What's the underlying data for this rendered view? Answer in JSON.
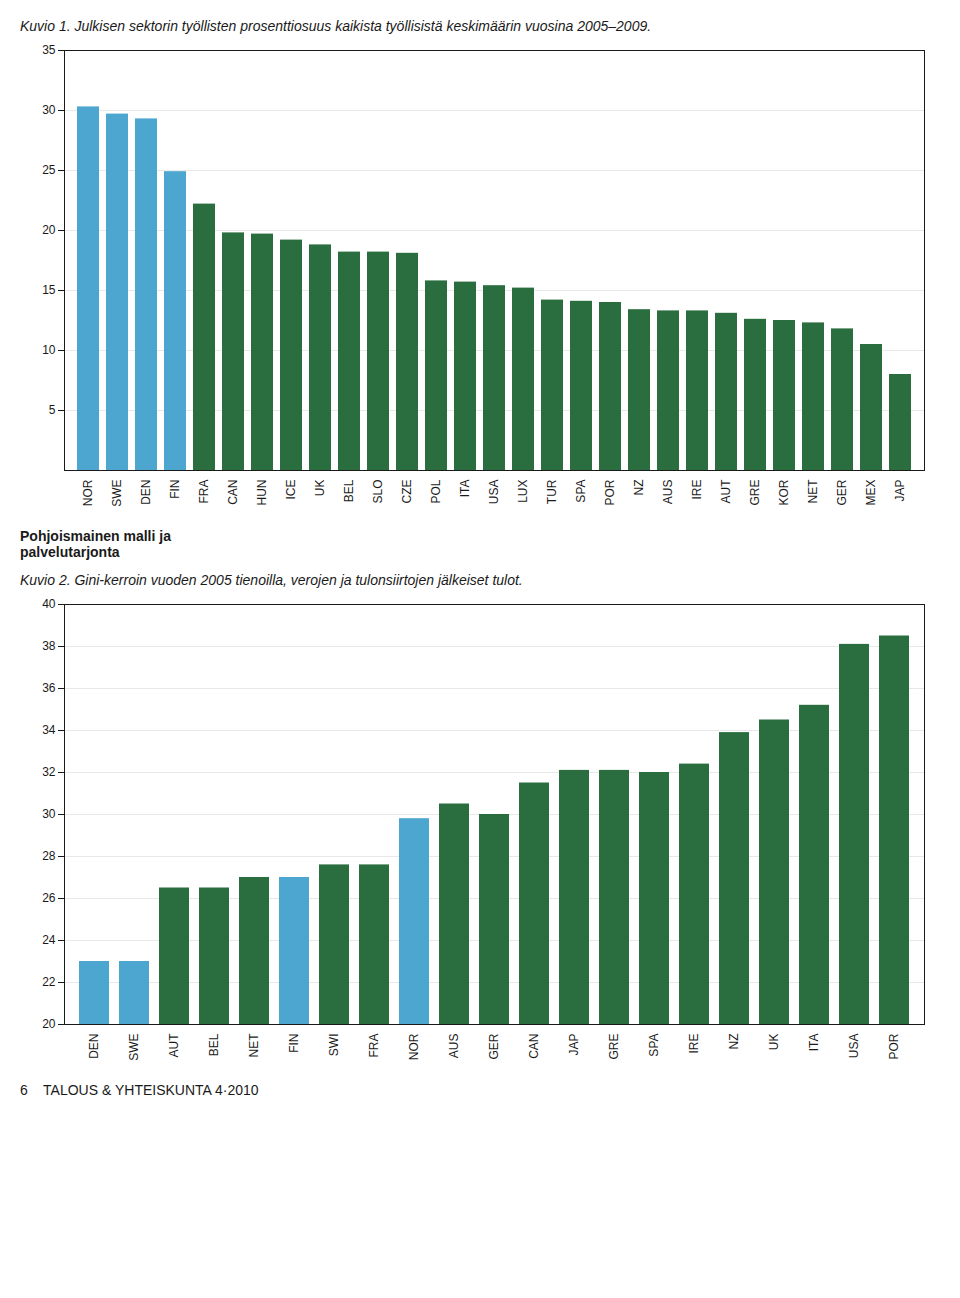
{
  "chart_data": [
    {
      "type": "bar",
      "title": "Kuvio 1. Julkisen sektorin työllisten prosenttiosuus kaikista työllisistä keskimäärin vuosina 2005–2009.",
      "categories": [
        "NOR",
        "SWE",
        "DEN",
        "FIN",
        "FRA",
        "CAN",
        "HUN",
        "ICE",
        "UK",
        "BEL",
        "SLO",
        "CZE",
        "POL",
        "ITA",
        "USA",
        "LUX",
        "TUR",
        "SPA",
        "POR",
        "NZ",
        "AUS",
        "IRE",
        "AUT",
        "GRE",
        "KOR",
        "NET",
        "GER",
        "MEX",
        "JAP"
      ],
      "values": [
        30.3,
        29.7,
        29.3,
        24.9,
        22.2,
        19.8,
        19.7,
        19.2,
        18.8,
        18.2,
        18.2,
        18.1,
        15.8,
        15.7,
        15.4,
        15.2,
        14.2,
        14.1,
        14.0,
        13.4,
        13.3,
        13.3,
        13.1,
        12.6,
        12.5,
        12.3,
        11.8,
        10.5,
        8.0
      ],
      "colors": [
        "#4da6d0",
        "#4da6d0",
        "#4da6d0",
        "#4da6d0",
        "#2a6e3f",
        "#2a6e3f",
        "#2a6e3f",
        "#2a6e3f",
        "#2a6e3f",
        "#2a6e3f",
        "#2a6e3f",
        "#2a6e3f",
        "#2a6e3f",
        "#2a6e3f",
        "#2a6e3f",
        "#2a6e3f",
        "#2a6e3f",
        "#2a6e3f",
        "#2a6e3f",
        "#2a6e3f",
        "#2a6e3f",
        "#2a6e3f",
        "#2a6e3f",
        "#2a6e3f",
        "#2a6e3f",
        "#2a6e3f",
        "#2a6e3f",
        "#2a6e3f",
        "#2a6e3f"
      ],
      "ylim": [
        0,
        35
      ],
      "yticks": [
        5,
        10,
        15,
        20,
        25,
        30,
        35
      ],
      "grid": true,
      "annotations": [
        "Pohjoismainen malli ja\npalvelutarjonta"
      ]
    },
    {
      "type": "bar",
      "title": "Kuvio 2. Gini-kerroin vuoden 2005 tienoilla, verojen ja tulonsiirtojen jälkeiset tulot.",
      "categories": [
        "DEN",
        "SWE",
        "AUT",
        "BEL",
        "NET",
        "FIN",
        "SWI",
        "FRA",
        "NOR",
        "AUS",
        "GER",
        "CAN",
        "JAP",
        "GRE",
        "SPA",
        "IRE",
        "NZ",
        "UK",
        "ITA",
        "USA",
        "POR"
      ],
      "values": [
        23.0,
        23.0,
        26.5,
        26.5,
        27.0,
        27.0,
        27.6,
        27.6,
        29.8,
        30.5,
        30.0,
        31.5,
        32.1,
        32.1,
        32.0,
        32.4,
        33.9,
        34.5,
        35.2,
        38.1,
        38.5
      ],
      "colors": [
        "#4da6d0",
        "#4da6d0",
        "#2a6e3f",
        "#2a6e3f",
        "#2a6e3f",
        "#4da6d0",
        "#2a6e3f",
        "#2a6e3f",
        "#4da6d0",
        "#2a6e3f",
        "#2a6e3f",
        "#2a6e3f",
        "#2a6e3f",
        "#2a6e3f",
        "#2a6e3f",
        "#2a6e3f",
        "#2a6e3f",
        "#2a6e3f",
        "#2a6e3f",
        "#2a6e3f",
        "#2a6e3f"
      ],
      "ylim": [
        20,
        40
      ],
      "yticks": [
        20,
        22,
        24,
        26,
        28,
        30,
        32,
        34,
        36,
        38,
        40
      ],
      "grid": true,
      "annotations": [
        "6    TALOUS & YHTEISKUNTA 4·2010"
      ]
    }
  ]
}
